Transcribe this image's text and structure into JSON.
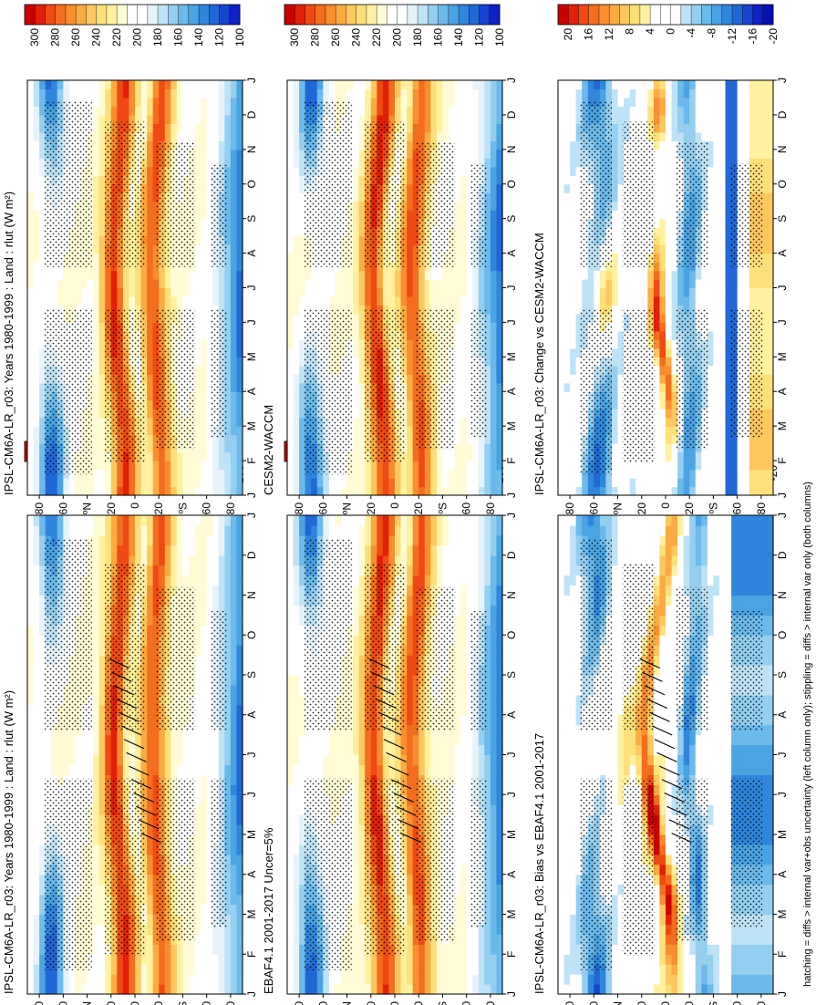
{
  "figure": {
    "footnote": "hatching = diffs > internal var+obs uncertainty (left column only); stippling = diffs > internal var only (both columns)"
  },
  "palettes": {
    "abs": [
      "#cc0000",
      "#e0200a",
      "#ef4a14",
      "#f36e1e",
      "#f88e30",
      "#fbab42",
      "#fdc860",
      "#fde07a",
      "#fff1a0",
      "#fffcd6",
      "#ffffff",
      "#ffffff",
      "#e6f3fb",
      "#bfe3f6",
      "#95cff0",
      "#6bbaeb",
      "#4aa3e3",
      "#2f86dc",
      "#2167d6",
      "#1745cf",
      "#0f20c6"
    ],
    "diff": [
      "#cc0000",
      "#e0200a",
      "#ef4a14",
      "#f36e1e",
      "#f88e30",
      "#fbab42",
      "#fdc860",
      "#fde07a",
      "#fff1a0",
      "#ffffff",
      "#ffffff",
      "#ffffff",
      "#bfe3f6",
      "#95cff0",
      "#6bbaeb",
      "#4aa3e3",
      "#2f86dc",
      "#2167d6",
      "#1745cf",
      "#0f20c6",
      "#0a10b8"
    ]
  },
  "chart_data": [
    {
      "id": "p1",
      "type": "heatmap",
      "title": "IPSL-CM6A-LR_r03: Years 1980-1999 : Land : rlut (W m²)",
      "x_categories": [
        "J",
        "F",
        "M",
        "A",
        "M",
        "J",
        "J",
        "A",
        "S",
        "O",
        "N",
        "D",
        "J"
      ],
      "y_ticks": [
        "80",
        "60",
        "ºN",
        "20",
        "0",
        "20",
        "ºS",
        "60",
        "80"
      ],
      "y_range": [
        -90,
        90
      ],
      "colorbar": {
        "labels": [
          "300",
          "280",
          "260",
          "240",
          "220",
          "200",
          "180",
          "160",
          "140",
          "120",
          "100"
        ],
        "range": [
          310,
          90
        ]
      },
      "palette": "abs",
      "field": "abs",
      "stipple": true,
      "hatch": true
    },
    {
      "id": "p2",
      "type": "heatmap",
      "title": "IPSL-CM6A-LR_r03: Years 1980-1999 : Land : rlut (W m²)",
      "x_categories": [
        "J",
        "F",
        "M",
        "A",
        "M",
        "J",
        "J",
        "A",
        "S",
        "O",
        "N",
        "D",
        "J"
      ],
      "y_ticks": [
        "80",
        "60",
        "ºN",
        "20",
        "0",
        "20",
        "ºS",
        "60",
        "80"
      ],
      "y_range": [
        -90,
        90
      ],
      "colorbar": {
        "labels": [
          "300",
          "280",
          "260",
          "240",
          "220",
          "200",
          "180",
          "160",
          "140",
          "120",
          "100"
        ],
        "range": [
          310,
          90
        ]
      },
      "palette": "abs",
      "field": "abs",
      "stipple": true,
      "hatch": false
    },
    {
      "id": "p3",
      "type": "heatmap",
      "title": "EBAF4.1 2001-2017 Uncer=5%",
      "x_categories": [
        "J",
        "F",
        "M",
        "A",
        "M",
        "J",
        "J",
        "A",
        "S",
        "O",
        "N",
        "D",
        "J"
      ],
      "y_ticks": [
        "80",
        "60",
        "ºN",
        "20",
        "0",
        "20",
        "ºS",
        "60",
        "80"
      ],
      "y_range": [
        -90,
        90
      ],
      "colorbar": {
        "labels": [
          "300",
          "280",
          "260",
          "240",
          "220",
          "200",
          "180",
          "160",
          "140",
          "120",
          "100"
        ],
        "range": [
          310,
          90
        ]
      },
      "palette": "abs",
      "field": "abs",
      "stipple": true,
      "hatch": true
    },
    {
      "id": "p4",
      "type": "heatmap",
      "title": "CESM2-WACCM",
      "x_categories": [
        "J",
        "F",
        "M",
        "A",
        "M",
        "J",
        "J",
        "A",
        "S",
        "O",
        "N",
        "D",
        "J"
      ],
      "y_ticks": [
        "80",
        "60",
        "ºN",
        "20",
        "0",
        "20",
        "ºS",
        "60",
        "80"
      ],
      "y_range": [
        -90,
        90
      ],
      "colorbar": {
        "labels": [
          "300",
          "280",
          "260",
          "240",
          "220",
          "200",
          "180",
          "160",
          "140",
          "120",
          "100"
        ],
        "range": [
          310,
          90
        ]
      },
      "palette": "abs",
      "field": "abs",
      "stipple": true,
      "hatch": false
    },
    {
      "id": "p5",
      "type": "heatmap",
      "title": "IPSL-CM6A-LR_r03: Bias vs EBAF4.1 2001-2017",
      "x_categories": [
        "J",
        "F",
        "M",
        "A",
        "M",
        "J",
        "J",
        "A",
        "S",
        "O",
        "N",
        "D",
        "J"
      ],
      "y_ticks": [
        "80",
        "60",
        "ºN",
        "20",
        "0",
        "20",
        "ºS",
        "60",
        "80"
      ],
      "y_range": [
        -90,
        90
      ],
      "colorbar": {
        "labels": [
          "20",
          "16",
          "12",
          "8",
          "4",
          "0",
          "-4",
          "-8",
          "-12",
          "-16",
          "-20"
        ],
        "range": [
          22,
          -22
        ]
      },
      "palette": "diff",
      "field": "bias",
      "stipple": true,
      "hatch": true
    },
    {
      "id": "p6",
      "type": "heatmap",
      "title": "IPSL-CM6A-LR_r03: Change vs CESM2-WACCM",
      "x_categories": [
        "J",
        "F",
        "M",
        "A",
        "M",
        "J",
        "J",
        "A",
        "S",
        "O",
        "N",
        "D",
        "J"
      ],
      "y_ticks": [
        "80",
        "60",
        "ºN",
        "20",
        "0",
        "20",
        "ºS",
        "60",
        "80"
      ],
      "y_range": [
        -90,
        90
      ],
      "colorbar": {
        "labels": [
          "20",
          "16",
          "12",
          "8",
          "4",
          "0",
          "-4",
          "-8",
          "-12",
          "-16",
          "-20"
        ],
        "range": [
          22,
          -22
        ]
      },
      "palette": "diff",
      "field": "change",
      "stipple": true,
      "hatch": false
    }
  ]
}
